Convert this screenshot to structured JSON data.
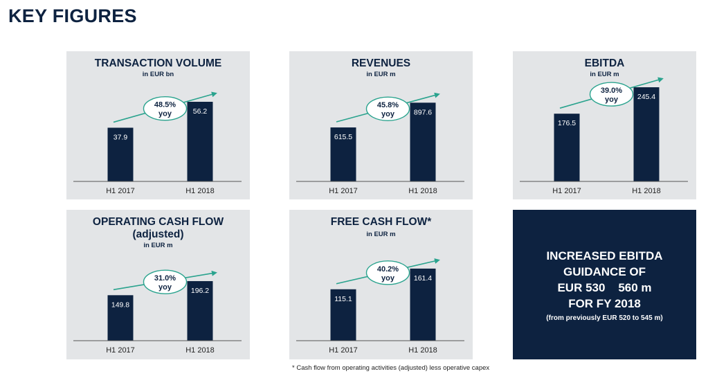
{
  "page_title": "KEY FIGURES",
  "colors": {
    "bar": "#0d2240",
    "arrow": "#2aa38e",
    "panel": "#e3e5e7",
    "navy": "#0d2240"
  },
  "chart_data": [
    {
      "type": "bar",
      "title": "TRANSACTION VOLUME",
      "subtitle": "in EUR bn",
      "categories": [
        "H1 2017",
        "H1 2018"
      ],
      "values": [
        37.9,
        56.2
      ],
      "data_labels": [
        "37.9",
        "56.2"
      ],
      "annotation": {
        "line1": "48.5%",
        "line2": "yoy"
      },
      "ylim": [
        0,
        65
      ]
    },
    {
      "type": "bar",
      "title": "REVENUES",
      "subtitle": "in EUR m",
      "categories": [
        "H1 2017",
        "H1 2018"
      ],
      "values": [
        615.5,
        897.6
      ],
      "data_labels": [
        "615.5",
        "897.6"
      ],
      "annotation": {
        "line1": "45.8%",
        "line2": "yoy"
      },
      "ylim": [
        0,
        1050
      ]
    },
    {
      "type": "bar",
      "title": "EBITDA",
      "subtitle": "in EUR m",
      "categories": [
        "H1 2017",
        "H1 2018"
      ],
      "values": [
        176.5,
        245.4
      ],
      "data_labels": [
        "176.5",
        "245.4"
      ],
      "annotation": {
        "line1": "39.0%",
        "line2": "yoy"
      },
      "ylim": [
        0,
        240
      ]
    },
    {
      "type": "bar",
      "title": "OPERATING CASH FLOW",
      "title_line2": "(adjusted)",
      "subtitle": "in EUR m",
      "categories": [
        "H1 2017",
        "H1 2018"
      ],
      "values": [
        149.8,
        196.2
      ],
      "data_labels": [
        "149.8",
        "196.2"
      ],
      "annotation": {
        "line1": "31.0%",
        "line2": "yoy"
      },
      "ylim": [
        0,
        260
      ]
    },
    {
      "type": "bar",
      "title": "FREE CASH FLOW*",
      "subtitle": "in EUR m",
      "categories": [
        "H1 2017",
        "H1 2018"
      ],
      "values": [
        115.1,
        161.4
      ],
      "data_labels": [
        "115.1",
        "161.4"
      ],
      "annotation": {
        "line1": "40.2%",
        "line2": "yoy"
      },
      "ylim": [
        0,
        200
      ]
    }
  ],
  "guidance": {
    "line1": "INCREASED EBITDA",
    "line2": "GUIDANCE OF",
    "line3": "EUR 530    560 m",
    "line4": "FOR FY 2018",
    "sub": "(from previously EUR 520 to 545 m)"
  },
  "footnote": "* Cash flow from operating activities (adjusted) less operative capex"
}
